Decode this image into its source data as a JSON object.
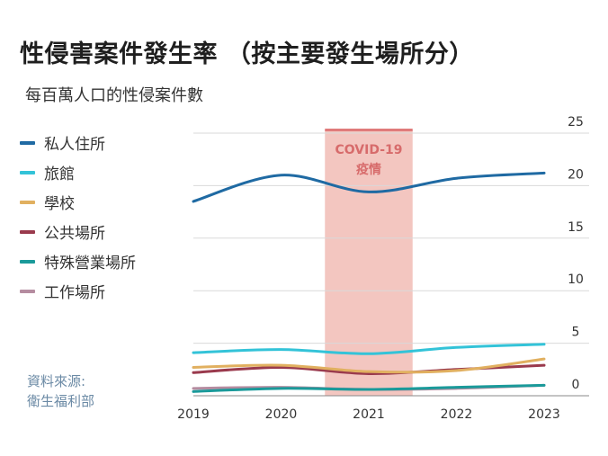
{
  "title": "性侵害案件發生率 （按主要發生場所分）",
  "subtitle": "每百萬人口的性侵案件數",
  "source": {
    "line1": "資料來源:",
    "line2": "衛生福利部"
  },
  "colors": {
    "grid": "#d9d9d9",
    "band_fill": "#f3c6c0",
    "band_top": "#e07b7b",
    "band_text": "#d76b6b"
  },
  "chart_data": {
    "type": "line",
    "x": [
      2019,
      2020,
      2021,
      2022,
      2023
    ],
    "xlim": [
      2019,
      2023
    ],
    "ylim": [
      0,
      25
    ],
    "yticks": [
      0,
      5,
      10,
      15,
      20,
      25
    ],
    "grid": true,
    "legend_position": "left",
    "annotation": {
      "line1": "COVID-19",
      "line2": "疫情",
      "x_from": 2020.5,
      "x_to": 2021.5
    },
    "series": [
      {
        "name": "私人住所",
        "color": "#1f6aa3",
        "values": [
          18.5,
          21.0,
          19.4,
          20.7,
          21.2
        ]
      },
      {
        "name": "旅館",
        "color": "#33c3d8",
        "values": [
          4.1,
          4.4,
          4.0,
          4.6,
          4.9
        ]
      },
      {
        "name": "學校",
        "color": "#e1b060",
        "values": [
          2.7,
          2.9,
          2.3,
          2.4,
          3.5
        ]
      },
      {
        "name": "公共場所",
        "color": "#9a3a4d",
        "values": [
          2.2,
          2.7,
          2.1,
          2.5,
          2.9
        ]
      },
      {
        "name": "特殊營業場所",
        "color": "#1a9a9a",
        "values": [
          0.4,
          0.7,
          0.6,
          0.8,
          1.0
        ]
      },
      {
        "name": "工作場所",
        "color": "#b58ca0",
        "values": [
          0.7,
          0.8,
          0.6,
          0.7,
          1.0
        ]
      }
    ]
  }
}
